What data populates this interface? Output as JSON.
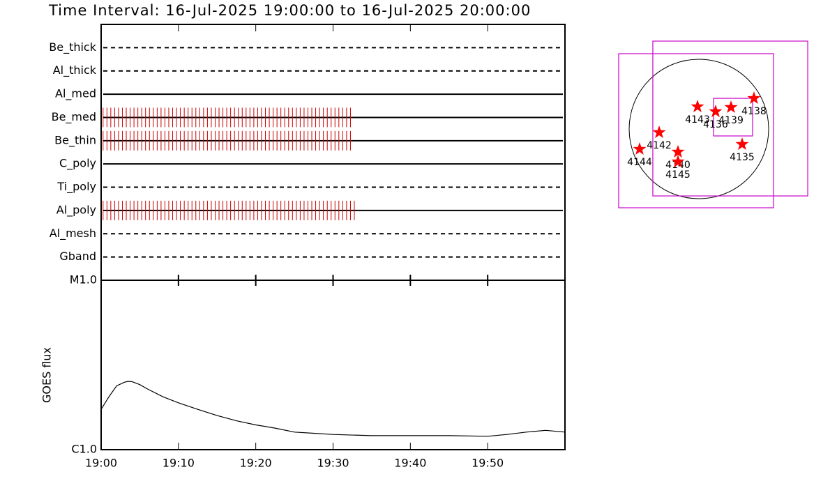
{
  "chart_data": [
    {
      "type": "timeline",
      "title": "Time Interval: 16-Jul-2025 19:00:00 to 16-Jul-2025 20:00:00",
      "xlim": [
        0,
        60
      ],
      "color": "#cc0000",
      "filters": [
        {
          "name": "Be_thick",
          "line": "dashed",
          "times": []
        },
        {
          "name": "Al_thick",
          "line": "dashed",
          "times": []
        },
        {
          "name": "Al_med",
          "line": "solid",
          "times": []
        },
        {
          "name": "Be_med",
          "line": "solid",
          "times": [
            0.25,
            0.75,
            1.25,
            1.75,
            2.25,
            2.75,
            3.25,
            3.75,
            4.25,
            4.75,
            5.25,
            5.75,
            6.25,
            6.75,
            7.25,
            7.75,
            8.25,
            8.75,
            9.25,
            9.75,
            10.25,
            10.75,
            11.25,
            11.75,
            12.25,
            12.75,
            13.25,
            13.75,
            14.25,
            14.75,
            15.25,
            15.75,
            16.25,
            16.75,
            17.25,
            17.75,
            18.25,
            18.75,
            19.25,
            19.75,
            20.25,
            20.75,
            21.25,
            21.75,
            22.25,
            22.75,
            23.25,
            23.75,
            24.25,
            24.75,
            25.25,
            25.75,
            26.25,
            26.75,
            27.25,
            27.75,
            28.25,
            28.75,
            29.25,
            29.75,
            30.25,
            30.75,
            31.25,
            31.75,
            32.25
          ]
        },
        {
          "name": "Be_thin",
          "line": "solid",
          "times": [
            0.25,
            0.75,
            1.25,
            1.75,
            2.25,
            2.75,
            3.25,
            3.75,
            4.25,
            4.75,
            5.25,
            5.75,
            6.25,
            6.75,
            7.25,
            7.75,
            8.25,
            8.75,
            9.25,
            9.75,
            10.25,
            10.75,
            11.25,
            11.75,
            12.25,
            12.75,
            13.25,
            13.75,
            14.25,
            14.75,
            15.25,
            15.75,
            16.25,
            16.75,
            17.25,
            17.75,
            18.25,
            18.75,
            19.25,
            19.75,
            20.25,
            20.75,
            21.25,
            21.75,
            22.25,
            22.75,
            23.25,
            23.75,
            24.25,
            24.75,
            25.25,
            25.75,
            26.25,
            26.75,
            27.25,
            27.75,
            28.25,
            28.75,
            29.25,
            29.75,
            30.25,
            30.75,
            31.25,
            31.75,
            32.25
          ]
        },
        {
          "name": "C_poly",
          "line": "solid",
          "times": []
        },
        {
          "name": "Ti_poly",
          "line": "dashed",
          "times": []
        },
        {
          "name": "Al_poly",
          "line": "solid",
          "times": [
            0.25,
            0.75,
            1.25,
            1.75,
            2.25,
            2.75,
            3.25,
            3.75,
            4.25,
            4.75,
            5.25,
            5.75,
            6.25,
            6.75,
            7.25,
            7.75,
            8.25,
            8.75,
            9.25,
            9.75,
            10.25,
            10.75,
            11.25,
            11.75,
            12.25,
            12.75,
            13.25,
            13.75,
            14.25,
            14.75,
            15.25,
            15.75,
            16.25,
            16.75,
            17.25,
            17.75,
            18.25,
            18.75,
            19.25,
            19.75,
            20.25,
            20.75,
            21.25,
            21.75,
            22.25,
            22.75,
            23.25,
            23.75,
            24.25,
            24.75,
            25.25,
            25.75,
            26.25,
            26.75,
            27.25,
            27.75,
            28.25,
            28.75,
            29.25,
            29.75,
            30.25,
            30.75,
            31.25,
            31.75,
            32.25,
            32.75
          ]
        },
        {
          "name": "Al_mesh",
          "line": "dashed",
          "times": []
        },
        {
          "name": "Gband",
          "line": "dashed",
          "times": []
        }
      ]
    },
    {
      "type": "line",
      "ylabel": "GOES flux",
      "log": true,
      "color": "#000000",
      "xlim": [
        0,
        60
      ],
      "xticks": [
        {
          "value": 0,
          "label": "19:00"
        },
        {
          "value": 10,
          "label": "19:10"
        },
        {
          "value": 20,
          "label": "19:20"
        },
        {
          "value": 30,
          "label": "19:30"
        },
        {
          "value": 40,
          "label": "19:40"
        },
        {
          "value": 50,
          "label": "19:50"
        }
      ],
      "ylim": [
        1e-06,
        1e-05
      ],
      "yticks": [
        {
          "value": 1e-06,
          "label": "C1.0"
        },
        {
          "value": 1e-05,
          "label": "M1.0"
        }
      ],
      "x": [
        0,
        1,
        2,
        3,
        3.5,
        4,
        5,
        6,
        8,
        10,
        12.5,
        15,
        17.5,
        20,
        22.5,
        25,
        27.5,
        30,
        35,
        40,
        45,
        50,
        52.5,
        55,
        57.5,
        60
      ],
      "values": [
        1.73e-06,
        2.05e-06,
        2.38e-06,
        2.5e-06,
        2.53e-06,
        2.52e-06,
        2.42e-06,
        2.28e-06,
        2.05e-06,
        1.89e-06,
        1.73e-06,
        1.59e-06,
        1.48e-06,
        1.4e-06,
        1.34e-06,
        1.27e-06,
        1.25e-06,
        1.23e-06,
        1.21e-06,
        1.21e-06,
        1.21e-06,
        1.2e-06,
        1.23e-06,
        1.27e-06,
        1.3e-06,
        1.27e-06
      ]
    },
    {
      "type": "map",
      "solar_radius": 960,
      "star_color": "#ff0000",
      "box_color": "#cc00cc",
      "regions": [
        {
          "label": "4143",
          "x": -19,
          "y": 307
        },
        {
          "label": "4136",
          "x": 230,
          "y": 240
        },
        {
          "label": "4139",
          "x": 442,
          "y": 298
        },
        {
          "label": "4138",
          "x": 758,
          "y": 422
        },
        {
          "label": "4142",
          "x": -547,
          "y": -48
        },
        {
          "label": "4144",
          "x": -816,
          "y": -278
        },
        {
          "label": "4140",
          "x": -288,
          "y": -317
        },
        {
          "label": "4145",
          "x": -288,
          "y": -451
        },
        {
          "label": "4135",
          "x": 595,
          "y": -211
        }
      ],
      "fov_boxes": [
        {
          "xrange": [
            -1104,
            1027
          ],
          "yrange": [
            -1085,
            1037
          ]
        },
        {
          "xrange": [
            -634,
            1498
          ],
          "yrange": [
            -922,
            1210
          ]
        },
        {
          "xrange": [
            202,
            739
          ],
          "yrange": [
            -96,
            422
          ]
        }
      ]
    }
  ]
}
